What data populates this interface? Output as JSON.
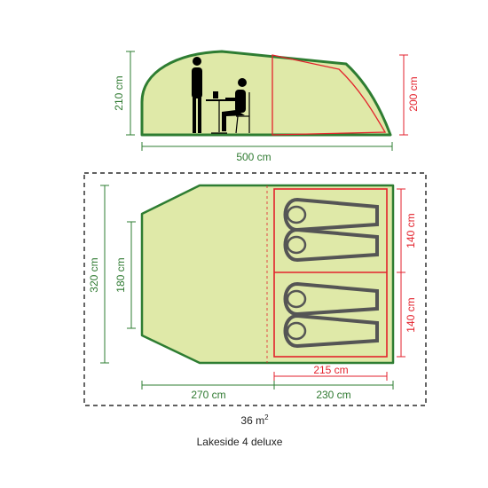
{
  "product_name": "Lakeside 4 deluxe",
  "floor_area": {
    "value": "36 m",
    "superscript": "2"
  },
  "colors": {
    "outline_green": "#2e7d32",
    "fill_green": "#dfe9a8",
    "bedroom_red": "#e3222c",
    "bag_dark": "#555555",
    "bag_fill": "#dfe9a8",
    "text_dark": "#222222"
  },
  "side_view": {
    "width_label": "500 cm",
    "height_label": "210 cm",
    "bedroom_height_label": "200 cm"
  },
  "floor_plan": {
    "total_depth_label": "320 cm",
    "living_depth_label": "180 cm",
    "bedroom_section_1_label": "140 cm",
    "bedroom_section_2_label": "140 cm",
    "bedroom_width_label": "215 cm",
    "living_width_label": "270 cm",
    "bedroom_total_width_label": "230 cm"
  }
}
